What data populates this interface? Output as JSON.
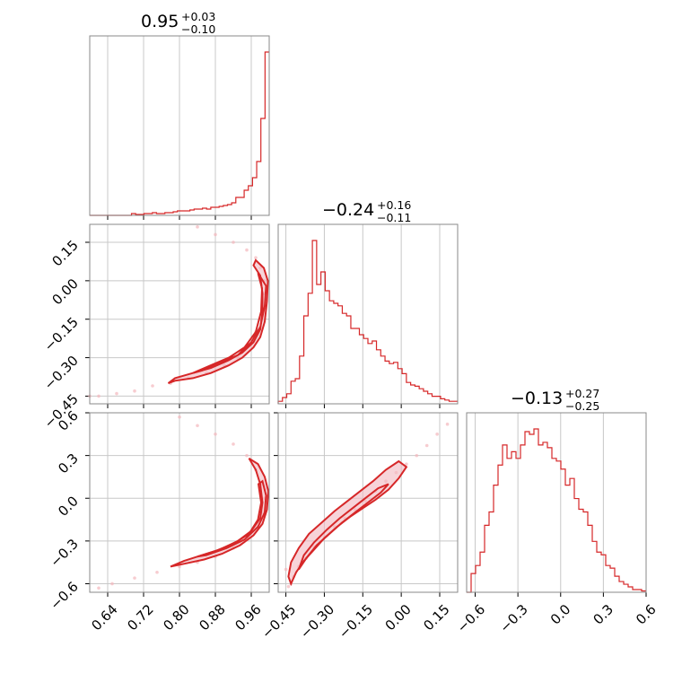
{
  "chart_data": {
    "type": "corner",
    "color": "#d62728",
    "fill_color": "#f2b8bf",
    "scatter_color": "#f4b6bc",
    "grid": true,
    "parameters": [
      {
        "title": {
          "main": "0.95",
          "sup": "+0.03",
          "sub": "−0.10"
        },
        "range": [
          0.6,
          1.0
        ],
        "ticks": [
          0.64,
          0.72,
          0.8,
          0.88,
          0.96
        ],
        "tick_labels": [
          "0.64",
          "0.72",
          "0.80",
          "0.88",
          "0.96"
        ]
      },
      {
        "title": {
          "main": "−0.24",
          "sup": "+0.16",
          "sub": "−0.11"
        },
        "range": [
          -0.48,
          0.22
        ],
        "ticks": [
          -0.45,
          -0.3,
          -0.15,
          0.0,
          0.15
        ],
        "tick_labels": [
          "−0.45",
          "−0.30",
          "−0.15",
          "0.00",
          "0.15"
        ]
      },
      {
        "title": {
          "main": "−0.13",
          "sup": "+0.27",
          "sub": "−0.25"
        },
        "range": [
          -0.66,
          0.6
        ],
        "ticks": [
          -0.6,
          -0.3,
          0.0,
          0.3,
          0.6
        ],
        "tick_labels": [
          "−0.6",
          "−0.3",
          "0.0",
          "0.3",
          "0.6"
        ]
      }
    ],
    "histograms": [
      {
        "param": 0,
        "bins": [
          0.6,
          1.0
        ],
        "counts": [
          0,
          0,
          0,
          0,
          0,
          0,
          0,
          0,
          0,
          0,
          2,
          1,
          1,
          2,
          2,
          3,
          2,
          2,
          3,
          3,
          4,
          5,
          5,
          5,
          6,
          7,
          7,
          8,
          7,
          9,
          9,
          10,
          11,
          12,
          14,
          20,
          20,
          28,
          33,
          42,
          60,
          108,
          182
        ]
      },
      {
        "param": 1,
        "bins": [
          -0.48,
          0.22
        ],
        "counts": [
          2,
          5,
          8,
          18,
          20,
          38,
          70,
          88,
          130,
          95,
          105,
          90,
          82,
          80,
          78,
          72,
          70,
          60,
          60,
          55,
          52,
          48,
          50,
          43,
          38,
          34,
          32,
          33,
          28,
          24,
          17,
          15,
          14,
          12,
          10,
          8,
          6,
          6,
          4,
          3,
          2,
          2
        ]
      },
      {
        "param": 2,
        "bins": [
          -0.66,
          0.6
        ],
        "counts": [
          0,
          14,
          20,
          30,
          50,
          60,
          80,
          95,
          110,
          100,
          105,
          100,
          110,
          120,
          118,
          122,
          110,
          112,
          108,
          100,
          98,
          92,
          80,
          85,
          70,
          62,
          60,
          50,
          38,
          30,
          28,
          20,
          18,
          12,
          8,
          6,
          4,
          2,
          2,
          1
        ]
      }
    ],
    "joint_plots": [
      {
        "x_param": 0,
        "y_param": 1,
        "points": [
          [
            0.99,
            0.0
          ],
          [
            0.988,
            -0.05
          ],
          [
            0.985,
            -0.1
          ],
          [
            0.98,
            -0.15
          ],
          [
            0.97,
            -0.2
          ],
          [
            0.955,
            -0.25
          ],
          [
            0.93,
            -0.3
          ],
          [
            0.9,
            -0.33
          ],
          [
            0.86,
            -0.36
          ],
          [
            0.82,
            -0.38
          ],
          [
            0.78,
            -0.4
          ],
          [
            0.74,
            -0.41
          ],
          [
            0.7,
            -0.43
          ],
          [
            0.66,
            -0.44
          ],
          [
            0.62,
            -0.45
          ],
          [
            0.6,
            -0.45
          ],
          [
            0.98,
            0.05
          ],
          [
            0.97,
            0.09
          ],
          [
            0.95,
            0.12
          ],
          [
            0.92,
            0.15
          ],
          [
            0.88,
            0.18
          ],
          [
            0.84,
            0.21
          ]
        ],
        "contour_levels": [
          [
            [
              0.997,
              0.0
            ],
            [
              0.995,
              -0.08
            ],
            [
              0.99,
              -0.16
            ],
            [
              0.98,
              -0.22
            ],
            [
              0.965,
              -0.26
            ],
            [
              0.94,
              -0.3
            ],
            [
              0.91,
              -0.33
            ],
            [
              0.87,
              -0.36
            ],
            [
              0.83,
              -0.38
            ],
            [
              0.79,
              -0.39
            ],
            [
              0.775,
              -0.4
            ],
            [
              0.79,
              -0.38
            ],
            [
              0.83,
              -0.36
            ],
            [
              0.87,
              -0.34
            ],
            [
              0.91,
              -0.31
            ],
            [
              0.94,
              -0.28
            ],
            [
              0.965,
              -0.24
            ],
            [
              0.98,
              -0.19
            ],
            [
              0.985,
              -0.12
            ],
            [
              0.985,
              -0.05
            ],
            [
              0.98,
              0.02
            ],
            [
              0.965,
              0.06
            ],
            [
              0.97,
              0.08
            ],
            [
              0.988,
              0.05
            ],
            [
              0.997,
              0.0
            ]
          ],
          [
            [
              0.993,
              -0.02
            ],
            [
              0.99,
              -0.1
            ],
            [
              0.98,
              -0.18
            ],
            [
              0.96,
              -0.24
            ],
            [
              0.93,
              -0.29
            ],
            [
              0.89,
              -0.32
            ],
            [
              0.85,
              -0.35
            ],
            [
              0.83,
              -0.36
            ],
            [
              0.87,
              -0.33
            ],
            [
              0.91,
              -0.3
            ],
            [
              0.945,
              -0.26
            ],
            [
              0.97,
              -0.2
            ],
            [
              0.982,
              -0.12
            ],
            [
              0.984,
              -0.03
            ],
            [
              0.975,
              0.03
            ],
            [
              0.993,
              -0.02
            ]
          ]
        ]
      },
      {
        "x_param": 0,
        "y_param": 2,
        "points": [
          [
            0.99,
            0.0
          ],
          [
            0.985,
            -0.1
          ],
          [
            0.975,
            -0.2
          ],
          [
            0.955,
            -0.28
          ],
          [
            0.92,
            -0.35
          ],
          [
            0.88,
            -0.41
          ],
          [
            0.84,
            -0.45
          ],
          [
            0.8,
            -0.48
          ],
          [
            0.75,
            -0.52
          ],
          [
            0.7,
            -0.56
          ],
          [
            0.65,
            -0.6
          ],
          [
            0.62,
            -0.63
          ],
          [
            0.985,
            0.1
          ],
          [
            0.97,
            0.2
          ],
          [
            0.95,
            0.3
          ],
          [
            0.92,
            0.38
          ],
          [
            0.88,
            0.45
          ],
          [
            0.84,
            0.51
          ],
          [
            0.8,
            0.57
          ]
        ],
        "contour_levels": [
          [
            [
              0.998,
              0.05
            ],
            [
              0.995,
              -0.08
            ],
            [
              0.985,
              -0.18
            ],
            [
              0.965,
              -0.26
            ],
            [
              0.935,
              -0.33
            ],
            [
              0.895,
              -0.39
            ],
            [
              0.855,
              -0.43
            ],
            [
              0.81,
              -0.46
            ],
            [
              0.78,
              -0.48
            ],
            [
              0.81,
              -0.44
            ],
            [
              0.85,
              -0.4
            ],
            [
              0.89,
              -0.36
            ],
            [
              0.93,
              -0.3
            ],
            [
              0.96,
              -0.23
            ],
            [
              0.98,
              -0.14
            ],
            [
              0.985,
              -0.03
            ],
            [
              0.98,
              0.1
            ],
            [
              0.97,
              0.2
            ],
            [
              0.955,
              0.28
            ],
            [
              0.975,
              0.24
            ],
            [
              0.99,
              0.15
            ],
            [
              0.998,
              0.05
            ]
          ],
          [
            [
              0.993,
              0.02
            ],
            [
              0.99,
              -0.1
            ],
            [
              0.975,
              -0.2
            ],
            [
              0.945,
              -0.29
            ],
            [
              0.905,
              -0.35
            ],
            [
              0.86,
              -0.4
            ],
            [
              0.84,
              -0.41
            ],
            [
              0.88,
              -0.37
            ],
            [
              0.92,
              -0.32
            ],
            [
              0.955,
              -0.25
            ],
            [
              0.975,
              -0.15
            ],
            [
              0.982,
              -0.03
            ],
            [
              0.976,
              0.1
            ],
            [
              0.985,
              0.12
            ],
            [
              0.993,
              0.02
            ]
          ]
        ]
      },
      {
        "x_param": 1,
        "y_param": 2,
        "points": [
          [
            -0.44,
            -0.62
          ],
          [
            -0.42,
            -0.55
          ],
          [
            -0.4,
            -0.48
          ],
          [
            -0.37,
            -0.42
          ],
          [
            -0.34,
            -0.34
          ],
          [
            -0.3,
            -0.27
          ],
          [
            -0.26,
            -0.2
          ],
          [
            -0.22,
            -0.14
          ],
          [
            -0.18,
            -0.08
          ],
          [
            -0.14,
            -0.02
          ],
          [
            -0.1,
            0.05
          ],
          [
            -0.06,
            0.12
          ],
          [
            -0.02,
            0.18
          ],
          [
            0.02,
            0.24
          ],
          [
            0.06,
            0.3
          ],
          [
            0.1,
            0.37
          ],
          [
            0.14,
            0.45
          ],
          [
            0.18,
            0.52
          ],
          [
            -0.45,
            -0.5
          ],
          [
            -0.43,
            -0.6
          ]
        ],
        "contour_levels": [
          [
            [
              -0.43,
              -0.6
            ],
            [
              -0.41,
              -0.52
            ],
            [
              -0.38,
              -0.44
            ],
            [
              -0.34,
              -0.36
            ],
            [
              -0.3,
              -0.28
            ],
            [
              -0.25,
              -0.2
            ],
            [
              -0.2,
              -0.13
            ],
            [
              -0.15,
              -0.07
            ],
            [
              -0.1,
              -0.01
            ],
            [
              -0.05,
              0.06
            ],
            [
              -0.01,
              0.14
            ],
            [
              0.02,
              0.22
            ],
            [
              -0.01,
              0.26
            ],
            [
              -0.06,
              0.2
            ],
            [
              -0.11,
              0.12
            ],
            [
              -0.16,
              0.05
            ],
            [
              -0.21,
              -0.02
            ],
            [
              -0.26,
              -0.09
            ],
            [
              -0.31,
              -0.17
            ],
            [
              -0.36,
              -0.25
            ],
            [
              -0.4,
              -0.35
            ],
            [
              -0.43,
              -0.45
            ],
            [
              -0.44,
              -0.55
            ],
            [
              -0.43,
              -0.6
            ]
          ],
          [
            [
              -0.4,
              -0.5
            ],
            [
              -0.37,
              -0.42
            ],
            [
              -0.33,
              -0.33
            ],
            [
              -0.28,
              -0.25
            ],
            [
              -0.23,
              -0.17
            ],
            [
              -0.18,
              -0.1
            ],
            [
              -0.13,
              -0.03
            ],
            [
              -0.08,
              0.04
            ],
            [
              -0.05,
              0.1
            ],
            [
              -0.09,
              0.07
            ],
            [
              -0.14,
              0.0
            ],
            [
              -0.19,
              -0.07
            ],
            [
              -0.24,
              -0.14
            ],
            [
              -0.29,
              -0.22
            ],
            [
              -0.34,
              -0.31
            ],
            [
              -0.38,
              -0.4
            ],
            [
              -0.4,
              -0.5
            ]
          ]
        ]
      }
    ]
  }
}
